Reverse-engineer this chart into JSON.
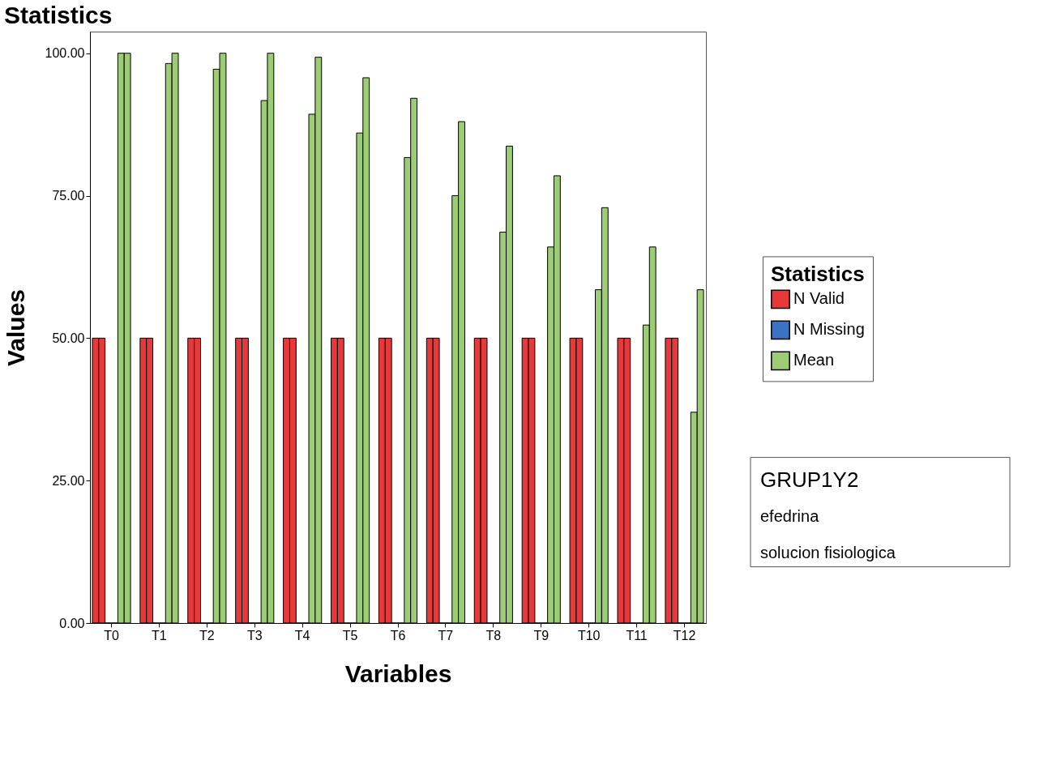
{
  "chart_data": {
    "type": "bar",
    "title": "Statistics",
    "xlabel": "Variables",
    "ylabel": "Values",
    "legend_title": "Statistics",
    "legend": "right",
    "categories": [
      "T0",
      "T1",
      "T2",
      "T3",
      "T4",
      "T5",
      "T6",
      "T7",
      "T8",
      "T9",
      "T10",
      "T11",
      "T12"
    ],
    "series": [
      {
        "name": "N Valid",
        "color": "#e8393a",
        "values": [
          50,
          50,
          50,
          50,
          50,
          50,
          50,
          50,
          50,
          50,
          50,
          50,
          50
        ]
      },
      {
        "color": "#e8393a",
        "values": [
          50,
          50,
          50,
          50,
          50,
          50,
          50,
          50,
          50,
          50,
          50,
          50,
          50
        ]
      },
      {
        "name": "N Missing",
        "color": "#3b73c4",
        "values": [
          0,
          0,
          0,
          0,
          0,
          0,
          0,
          0,
          0,
          0,
          0,
          0,
          0
        ]
      },
      {
        "color": "#3b73c4",
        "values": [
          0,
          0,
          0,
          0,
          0,
          0,
          0,
          0,
          0,
          0,
          0,
          0,
          0
        ]
      },
      {
        "name": "Mean",
        "color": "#9ccc74",
        "values": [
          100,
          98.2,
          97.2,
          91.7,
          89.3,
          86,
          81.7,
          75,
          68.6,
          66,
          58.5,
          52.3,
          37
        ]
      },
      {
        "color": "#9ccc74",
        "values": [
          100,
          100,
          100,
          100,
          99.3,
          95.7,
          92.1,
          88,
          83.7,
          78.5,
          72.9,
          66,
          58.5
        ]
      }
    ],
    "ylim": [
      0,
      103.8
    ],
    "yticks": [
      {
        "value": 0,
        "label": "0.00"
      },
      {
        "value": 25,
        "label": "25.00"
      },
      {
        "value": 50,
        "label": "50.00"
      },
      {
        "value": 75,
        "label": "75.00"
      },
      {
        "value": 100,
        "label": "100.00"
      }
    ],
    "grid": false,
    "annotations": [
      "GRUP1Y2",
      "efedrina",
      "solucion fisiologica"
    ]
  }
}
